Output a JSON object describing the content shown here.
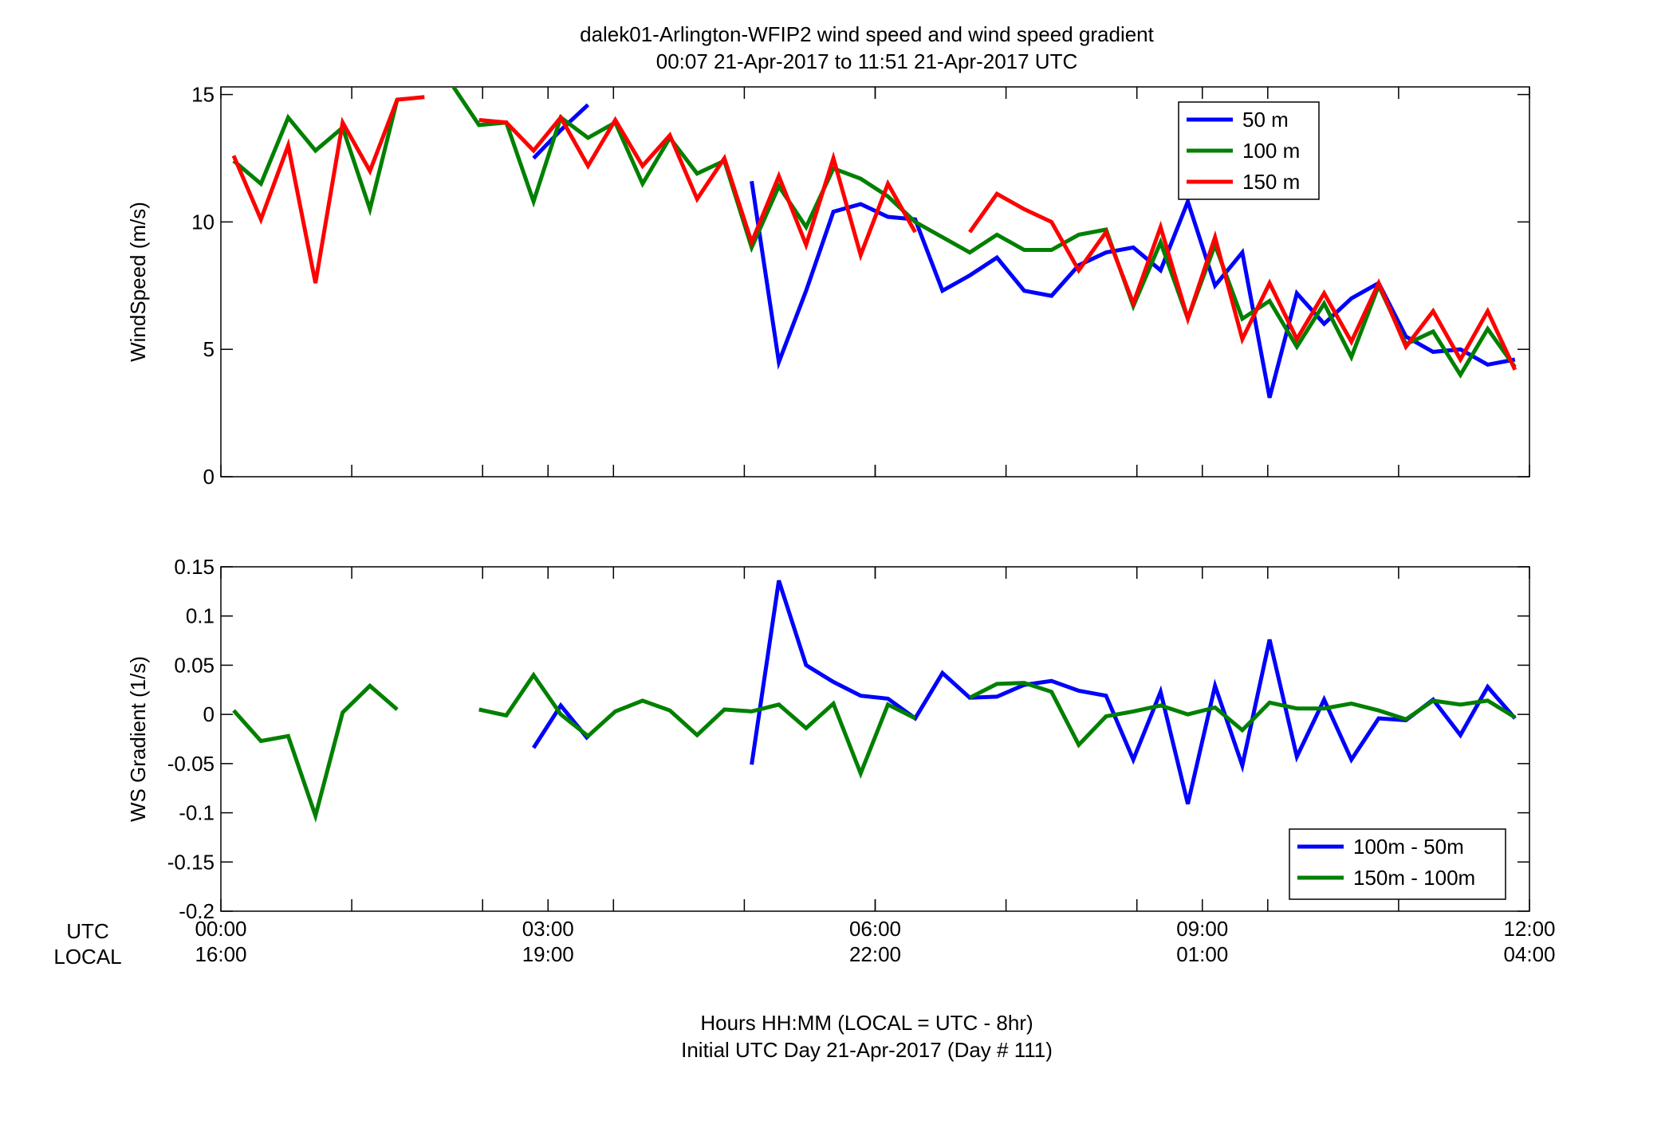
{
  "title": {
    "line1": "dalek01-Arlington-WFIP2  wind speed and wind speed gradient",
    "line2": "00:07 21-Apr-2017 to 11:51 21-Apr-2017  UTC"
  },
  "xaxis": {
    "row_label_utc": "UTC",
    "row_label_local": "LOCAL",
    "ticks": [
      {
        "hour": 0,
        "utc": "00:00",
        "local": "16:00"
      },
      {
        "hour": 3,
        "utc": "03:00",
        "local": "19:00"
      },
      {
        "hour": 6,
        "utc": "06:00",
        "local": "22:00"
      },
      {
        "hour": 9,
        "utc": "09:00",
        "local": "01:00"
      },
      {
        "hour": 12,
        "utc": "12:00",
        "local": "04:00"
      }
    ],
    "minor_tick_hours": [
      1.2,
      2.4,
      3.6,
      4.8,
      6.0,
      7.2,
      8.4,
      9.6,
      10.8
    ],
    "label_line1": "Hours HH:MM  (LOCAL = UTC - 8hr)",
    "label_line2": "Initial UTC Day 21-Apr-2017 (Day # 111)"
  },
  "chart_data": [
    {
      "type": "line",
      "ylabel": "WindSpeed (m/s)",
      "xlim": [
        0,
        12
      ],
      "ylim": [
        0,
        15.3
      ],
      "yticks": [
        0,
        5,
        10,
        15
      ],
      "ytick_labels": [
        "0",
        "5",
        "10",
        "15"
      ],
      "legend_position": "top-right",
      "x": [
        0.117,
        0.367,
        0.617,
        0.867,
        1.117,
        1.367,
        1.617,
        1.867,
        2.117,
        2.367,
        2.617,
        2.867,
        3.117,
        3.367,
        3.617,
        3.867,
        4.117,
        4.367,
        4.617,
        4.867,
        5.117,
        5.367,
        5.617,
        5.867,
        6.117,
        6.367,
        6.617,
        6.867,
        7.117,
        7.367,
        7.617,
        7.867,
        8.117,
        8.367,
        8.617,
        8.867,
        9.117,
        9.367,
        9.617,
        9.867,
        10.117,
        10.367,
        10.617,
        10.867,
        11.117,
        11.367,
        11.617,
        11.867
      ],
      "series": [
        {
          "name": "50 m",
          "color": "#0000ff",
          "values": [
            null,
            null,
            null,
            null,
            null,
            null,
            null,
            null,
            null,
            null,
            null,
            12.5,
            13.6,
            14.6,
            null,
            null,
            null,
            null,
            null,
            11.6,
            4.5,
            7.3,
            10.4,
            10.7,
            10.2,
            10.1,
            7.3,
            7.9,
            8.6,
            7.3,
            7.1,
            8.3,
            8.8,
            9.0,
            8.1,
            10.8,
            7.5,
            8.8,
            3.1,
            7.2,
            6.0,
            7.0,
            7.6,
            5.5,
            4.9,
            5.0,
            4.4,
            4.6
          ]
        },
        {
          "name": "100 m",
          "color": "#008000",
          "values": [
            12.4,
            11.5,
            14.1,
            12.8,
            13.7,
            10.5,
            14.8,
            null,
            15.4,
            13.8,
            13.9,
            10.8,
            14.1,
            13.3,
            13.9,
            11.5,
            13.3,
            11.9,
            12.4,
            9.0,
            11.4,
            9.8,
            12.1,
            11.7,
            11.0,
            10.0,
            9.4,
            8.8,
            9.5,
            8.9,
            8.9,
            9.5,
            9.7,
            6.7,
            9.2,
            6.2,
            9.1,
            6.2,
            6.9,
            5.1,
            6.8,
            4.7,
            7.5,
            5.2,
            5.7,
            4.0,
            5.8,
            4.3
          ]
        },
        {
          "name": "150 m",
          "color": "#ff0000",
          "values": [
            12.6,
            10.1,
            13.0,
            7.6,
            13.9,
            12.0,
            14.8,
            14.9,
            null,
            14.0,
            13.9,
            12.8,
            14.1,
            12.2,
            14.0,
            12.2,
            13.4,
            10.9,
            12.5,
            9.2,
            11.8,
            9.1,
            12.5,
            8.7,
            11.5,
            9.6,
            null,
            9.6,
            11.1,
            10.5,
            10.0,
            8.1,
            9.6,
            6.8,
            9.8,
            6.2,
            9.4,
            5.4,
            7.6,
            5.4,
            7.2,
            5.3,
            7.6,
            5.1,
            6.5,
            4.6,
            6.5,
            4.2
          ]
        }
      ]
    },
    {
      "type": "line",
      "ylabel": "WS Gradient (1/s)",
      "xlim": [
        0,
        12
      ],
      "ylim": [
        -0.2,
        0.15
      ],
      "yticks": [
        -0.2,
        -0.15,
        -0.1,
        -0.05,
        0,
        0.05,
        0.1,
        0.15
      ],
      "ytick_labels": [
        "-0.2",
        "-0.15",
        "-0.1",
        "-0.05",
        "0",
        "0.05",
        "0.1",
        "0.15"
      ],
      "legend_position": "bottom-right",
      "x": [
        0.117,
        0.367,
        0.617,
        0.867,
        1.117,
        1.367,
        1.617,
        1.867,
        2.117,
        2.367,
        2.617,
        2.867,
        3.117,
        3.367,
        3.617,
        3.867,
        4.117,
        4.367,
        4.617,
        4.867,
        5.117,
        5.367,
        5.617,
        5.867,
        6.117,
        6.367,
        6.617,
        6.867,
        7.117,
        7.367,
        7.617,
        7.867,
        8.117,
        8.367,
        8.617,
        8.867,
        9.117,
        9.367,
        9.617,
        9.867,
        10.117,
        10.367,
        10.617,
        10.867,
        11.117,
        11.367,
        11.617,
        11.867
      ],
      "series": [
        {
          "name": "100m - 50m",
          "color": "#0000ff",
          "values": [
            null,
            null,
            null,
            null,
            null,
            null,
            null,
            null,
            null,
            null,
            null,
            -0.034,
            0.009,
            -0.025,
            null,
            null,
            null,
            null,
            null,
            -0.051,
            0.136,
            0.05,
            0.033,
            0.019,
            0.016,
            -0.004,
            0.042,
            0.017,
            0.018,
            0.03,
            0.034,
            0.024,
            0.019,
            -0.046,
            0.023,
            -0.091,
            0.029,
            -0.052,
            0.076,
            -0.043,
            0.015,
            -0.046,
            -0.004,
            -0.006,
            0.015,
            -0.021,
            0.028,
            -0.004
          ]
        },
        {
          "name": "150m - 100m",
          "color": "#008000",
          "values": [
            0.004,
            -0.027,
            -0.022,
            -0.103,
            0.002,
            0.029,
            0.005,
            null,
            null,
            0.005,
            -0.001,
            0.04,
            0.0,
            -0.022,
            0.003,
            0.014,
            0.004,
            -0.021,
            0.005,
            0.003,
            0.01,
            -0.014,
            0.011,
            -0.06,
            0.01,
            -0.004,
            null,
            0.017,
            0.031,
            0.032,
            0.023,
            -0.031,
            -0.002,
            0.003,
            0.009,
            0.0,
            0.007,
            -0.016,
            0.012,
            0.006,
            0.006,
            0.011,
            0.004,
            -0.005,
            0.014,
            0.01,
            0.014,
            -0.003
          ]
        }
      ]
    }
  ]
}
